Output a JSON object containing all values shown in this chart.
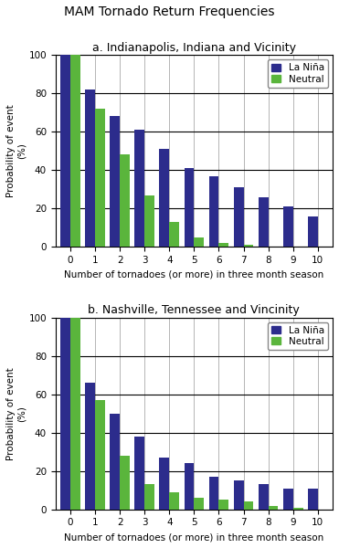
{
  "title": "MAM Tornado Return Frequencies",
  "subplot_a_title": "a. Indianapolis, Indiana and Vicinity",
  "subplot_b_title": "b. Nashville, Tennessee and Vincinity",
  "xlabel": "Number of tornadoes (or more) in three month season",
  "ylabel": "Probability of event\n(%)",
  "x_ticks": [
    0,
    1,
    2,
    3,
    4,
    5,
    6,
    7,
    8,
    9,
    10
  ],
  "ylim": [
    0,
    100
  ],
  "yticks": [
    0,
    20,
    40,
    60,
    80,
    100
  ],
  "la_nina_color": "#2c2c8c",
  "neutral_color": "#5ab53c",
  "legend_la_nina": "La Niña",
  "legend_neutral": "Neutral",
  "panel_a": {
    "la_nina": [
      100,
      82,
      68,
      61,
      51,
      41,
      37,
      31,
      26,
      21,
      16
    ],
    "neutral": [
      100,
      72,
      48,
      27,
      13,
      5,
      2,
      1,
      0,
      0,
      0
    ]
  },
  "panel_b": {
    "la_nina": [
      100,
      66,
      50,
      38,
      27,
      24,
      17,
      15,
      13,
      11,
      11
    ],
    "neutral": [
      100,
      57,
      28,
      13,
      9,
      6,
      5,
      4,
      2,
      1,
      0
    ]
  },
  "bar_width": 0.4,
  "title_fontsize": 10,
  "subtitle_fontsize": 9,
  "tick_fontsize": 7.5,
  "label_fontsize": 7.5,
  "legend_fontsize": 7.5
}
